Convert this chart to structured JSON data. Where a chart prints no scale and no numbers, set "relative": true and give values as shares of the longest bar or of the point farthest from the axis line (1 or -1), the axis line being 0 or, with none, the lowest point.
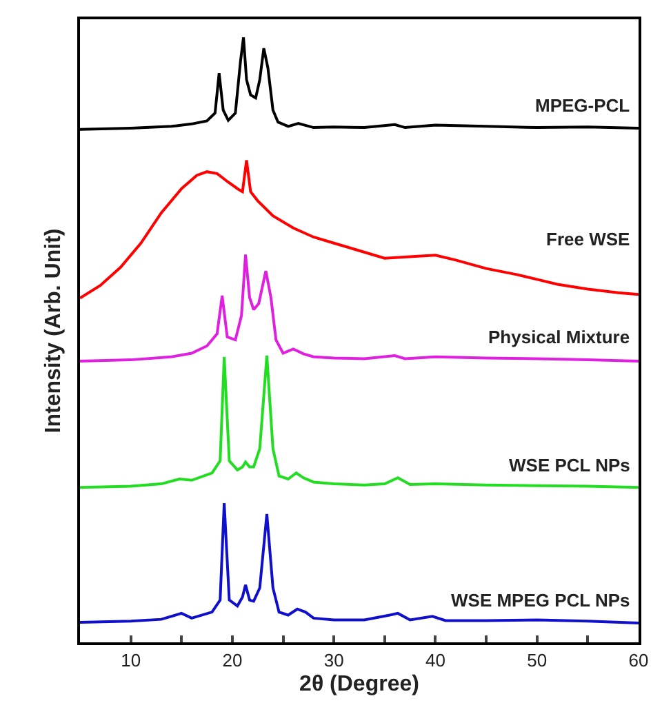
{
  "chart_data": {
    "type": "line",
    "relative": true,
    "xlabel": "2θ (Degree)",
    "ylabel": "Intensity (Arb. Unit)",
    "xlim": [
      5,
      60
    ],
    "xticks": [
      10,
      {
        "value": 15,
        "label": null
      },
      20,
      {
        "value": 25,
        "label": null
      },
      30,
      {
        "value": 35,
        "label": null
      },
      40,
      {
        "value": 45,
        "label": null
      },
      50,
      {
        "value": 55,
        "label": null
      },
      60
    ],
    "legend": false,
    "marker": "none",
    "line_style": "solid",
    "series": [
      {
        "name": "MPEG-PCL",
        "color": "#000000",
        "x": [
          5,
          10,
          14,
          16,
          17.5,
          18.3,
          18.7,
          19.1,
          19.6,
          20.3,
          20.8,
          21.1,
          21.4,
          21.8,
          22.3,
          22.7,
          23.1,
          23.5,
          24.0,
          24.5,
          25.5,
          26.5,
          28,
          30,
          33,
          36,
          37,
          40,
          45,
          50,
          55,
          60
        ],
        "values": [
          0.848,
          0.85,
          0.853,
          0.857,
          0.862,
          0.875,
          0.941,
          0.88,
          0.863,
          0.875,
          0.96,
          1.0,
          0.93,
          0.905,
          0.9,
          0.93,
          0.982,
          0.95,
          0.88,
          0.86,
          0.853,
          0.858,
          0.851,
          0.852,
          0.851,
          0.856,
          0.851,
          0.855,
          0.853,
          0.851,
          0.852,
          0.85
        ]
      },
      {
        "name": "Free WSE",
        "color": "#ff0000",
        "x": [
          5,
          7,
          9,
          11,
          13,
          15,
          16.5,
          17.5,
          18.5,
          19.5,
          20.5,
          21.0,
          21.4,
          21.8,
          22.5,
          24,
          26,
          28,
          30,
          32,
          35,
          38,
          40,
          42,
          45,
          48,
          50,
          52,
          55,
          58,
          60
        ],
        "values": [
          0.569,
          0.59,
          0.62,
          0.66,
          0.71,
          0.75,
          0.772,
          0.778,
          0.775,
          0.762,
          0.75,
          0.745,
          0.797,
          0.745,
          0.73,
          0.705,
          0.685,
          0.67,
          0.66,
          0.65,
          0.635,
          0.638,
          0.64,
          0.632,
          0.618,
          0.608,
          0.6,
          0.592,
          0.584,
          0.578,
          0.575
        ]
      },
      {
        "name": "Physical Mixture",
        "color": "#e020e0",
        "x": [
          5,
          10,
          14,
          16,
          17.5,
          18.5,
          19.0,
          19.5,
          20.3,
          20.9,
          21.3,
          21.7,
          22.1,
          22.6,
          23.3,
          23.8,
          24.3,
          25,
          26,
          27,
          28,
          30,
          33,
          36,
          37,
          40,
          45,
          50,
          55,
          60
        ],
        "values": [
          0.465,
          0.467,
          0.472,
          0.478,
          0.49,
          0.51,
          0.573,
          0.505,
          0.5,
          0.54,
          0.641,
          0.57,
          0.55,
          0.56,
          0.614,
          0.57,
          0.5,
          0.478,
          0.485,
          0.477,
          0.472,
          0.47,
          0.469,
          0.474,
          0.469,
          0.472,
          0.47,
          0.469,
          0.467,
          0.465
        ]
      },
      {
        "name": "WSE PCL NPs",
        "color": "#22dd22",
        "x": [
          5,
          10,
          13,
          14.8,
          16,
          18,
          18.8,
          19.2,
          19.7,
          20.5,
          21.0,
          21.3,
          21.7,
          22.1,
          22.7,
          23.4,
          24.0,
          24.6,
          25.5,
          26.3,
          27,
          28,
          30,
          33,
          35,
          36.3,
          37.5,
          40,
          45,
          50,
          55,
          60
        ],
        "values": [
          0.256,
          0.258,
          0.262,
          0.27,
          0.268,
          0.28,
          0.3,
          0.472,
          0.3,
          0.285,
          0.29,
          0.298,
          0.29,
          0.29,
          0.32,
          0.474,
          0.32,
          0.275,
          0.27,
          0.28,
          0.272,
          0.265,
          0.262,
          0.26,
          0.262,
          0.272,
          0.261,
          0.262,
          0.26,
          0.259,
          0.258,
          0.256
        ]
      },
      {
        "name": "WSE MPEG PCL NPs",
        "color": "#1010cc",
        "x": [
          5,
          10,
          13,
          15,
          16,
          18,
          18.8,
          19.2,
          19.7,
          20.5,
          21.0,
          21.3,
          21.7,
          22.1,
          22.7,
          23.4,
          24.0,
          24.6,
          25.5,
          26.4,
          27.2,
          28,
          30,
          33,
          35.5,
          36.3,
          37.5,
          39.7,
          41,
          45,
          50,
          55,
          60
        ],
        "values": [
          0.033,
          0.035,
          0.038,
          0.048,
          0.04,
          0.05,
          0.07,
          0.23,
          0.07,
          0.06,
          0.075,
          0.095,
          0.07,
          0.068,
          0.09,
          0.212,
          0.09,
          0.05,
          0.045,
          0.055,
          0.05,
          0.04,
          0.037,
          0.037,
          0.045,
          0.048,
          0.037,
          0.043,
          0.036,
          0.036,
          0.037,
          0.035,
          0.032
        ]
      }
    ]
  }
}
